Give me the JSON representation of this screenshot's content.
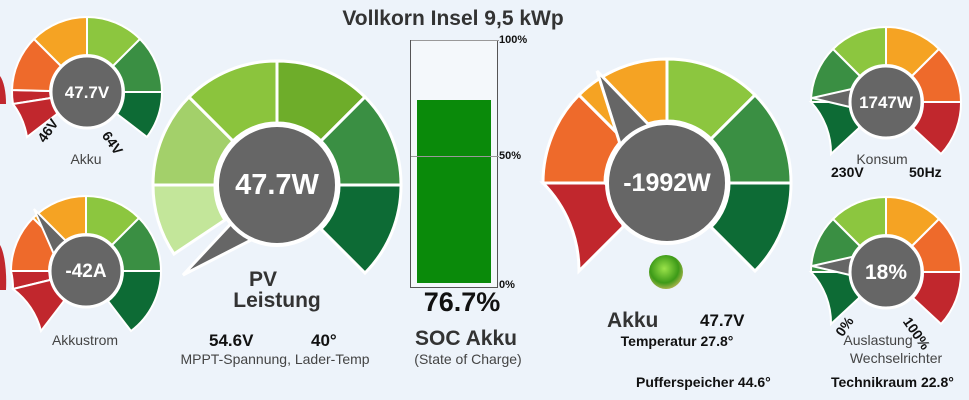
{
  "title": "Vollkorn Insel 9,5 kWp",
  "colors": {
    "red": "#c1272d",
    "orange_red": "#ee6a2b",
    "orange": "#f5a323",
    "light_green": "#8cc63f",
    "mid_green": "#3a8f43",
    "dark_green": "#0d6b35",
    "pv_pale": "#c3e69a",
    "pv_light": "#a3d06a",
    "pv_green1": "#8bc43d",
    "pv_green2": "#6ead2a",
    "pointer_gray": "#666666",
    "soc_fill": "#0a8a0a",
    "status_led": "#4caf1f"
  },
  "gauges": {
    "akku_small": {
      "value_text": "47.7V",
      "label": "Akku",
      "min_label": "46V",
      "max_label": "64V"
    },
    "akkustrom": {
      "value_text": "-42A",
      "label": "Akkustrom"
    },
    "pv": {
      "value_text": "47.7W",
      "label_line1": "PV",
      "label_line2": "Leistung",
      "mppt_voltage": "54.6V",
      "charger_temp": "40°",
      "sub_label": "MPPT-Spannung, Lader-Temp"
    },
    "akku_big": {
      "value_text": "-1992W",
      "label": "Akku",
      "voltage": "47.7V",
      "temperature_line": "Temperatur 27.8°"
    },
    "konsum": {
      "value_text": "1747W",
      "label": "Konsum",
      "voltage_label": "230V",
      "freq_label": "50Hz"
    },
    "auslastung": {
      "value_text": "18%",
      "label_line1": "Auslastung",
      "label_line2": "Wechselrichter",
      "min_label": "0%",
      "max_label": "100%"
    }
  },
  "soc": {
    "value": 0.767,
    "value_text": "76.7%",
    "tick_100": "100%",
    "tick_50": "50%",
    "tick_0": "0%",
    "label": "SOC Akku",
    "sub_label": "(State of Charge)"
  },
  "footer": {
    "pufferspeicher": "Pufferspeicher 44.6°",
    "technikraum": "Technikraum 22.8°"
  }
}
